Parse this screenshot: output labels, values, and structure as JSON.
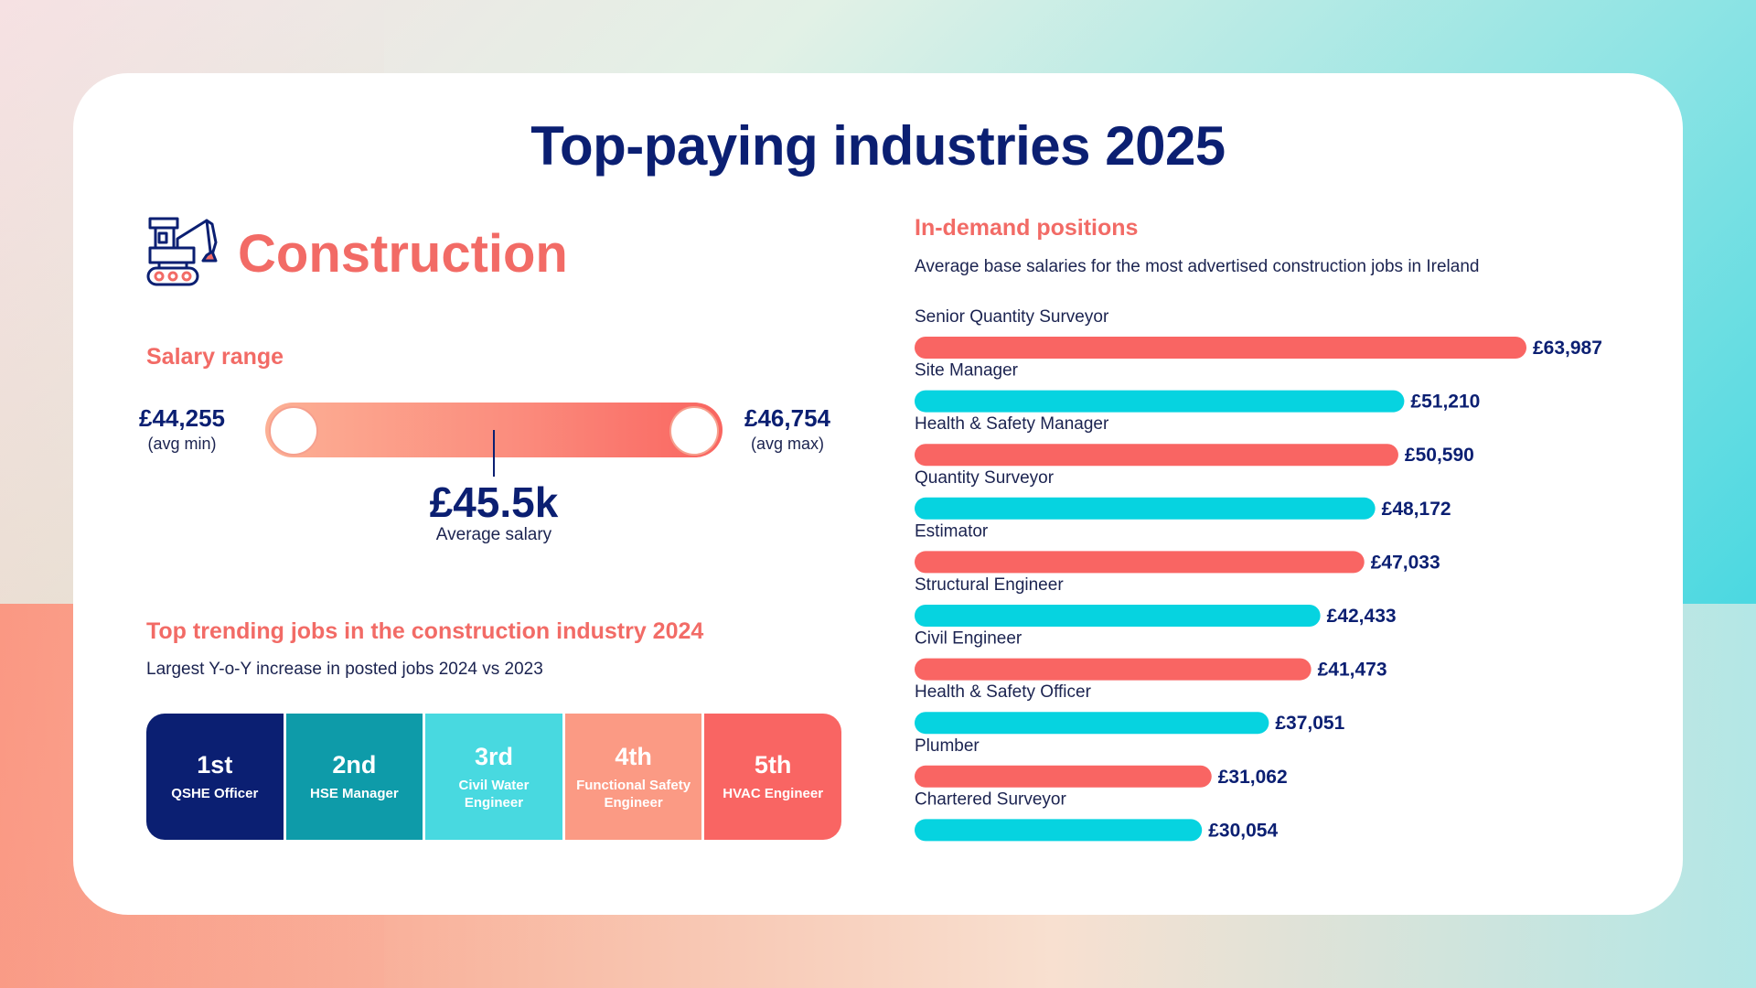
{
  "title": "Top-paying industries 2025",
  "industry": "Construction",
  "salary_range": {
    "heading": "Salary range",
    "min_value": "£44,255",
    "min_label": "(avg min)",
    "max_value": "£46,754",
    "max_label": "(avg max)",
    "average_value": "£45.5k",
    "average_label": "Average salary"
  },
  "trending": {
    "heading": "Top trending jobs in the construction industry 2024",
    "subtitle": "Largest Y-o-Y increase in posted jobs 2024 vs 2023",
    "items": [
      {
        "rank": "1st",
        "job": "QSHE Officer",
        "color": "#0b1f72"
      },
      {
        "rank": "2nd",
        "job": "HSE Manager",
        "color": "#0e9ba9"
      },
      {
        "rank": "3rd",
        "job": "Civil Water Engineer",
        "color": "#48d9e0"
      },
      {
        "rank": "4th",
        "job": "Functional Safety Engineer",
        "color": "#fb9a84"
      },
      {
        "rank": "5th",
        "job": "HVAC Engineer",
        "color": "#f96563"
      }
    ]
  },
  "positions": {
    "heading": "In-demand positions",
    "subtitle": "Average base salaries for the most advertised construction jobs in Ireland"
  },
  "colors": {
    "coral": "#f96563",
    "cyan": "#06d3e0",
    "navy": "#0b1f72"
  },
  "chart_data": {
    "type": "bar",
    "orientation": "horizontal",
    "categories": [
      "Senior Quantity Surveyor",
      "Site Manager",
      "Health & Safety Manager",
      "Quantity Surveyor",
      "Estimator",
      "Structural Engineer",
      "Civil Engineer",
      "Health & Safety Officer",
      "Plumber",
      "Chartered Surveyor"
    ],
    "values": [
      63987,
      51210,
      50590,
      48172,
      47033,
      42433,
      41473,
      37051,
      31062,
      30054
    ],
    "value_labels": [
      "£63,987",
      "£51,210",
      "£50,590",
      "£48,172",
      "£47,033",
      "£42,433",
      "£41,473",
      "£37,051",
      "£31,062",
      "£30,054"
    ],
    "bar_colors": [
      "#f96563",
      "#06d3e0",
      "#f96563",
      "#06d3e0",
      "#f96563",
      "#06d3e0",
      "#f96563",
      "#06d3e0",
      "#f96563",
      "#06d3e0"
    ],
    "grid": false,
    "legend": "none"
  }
}
